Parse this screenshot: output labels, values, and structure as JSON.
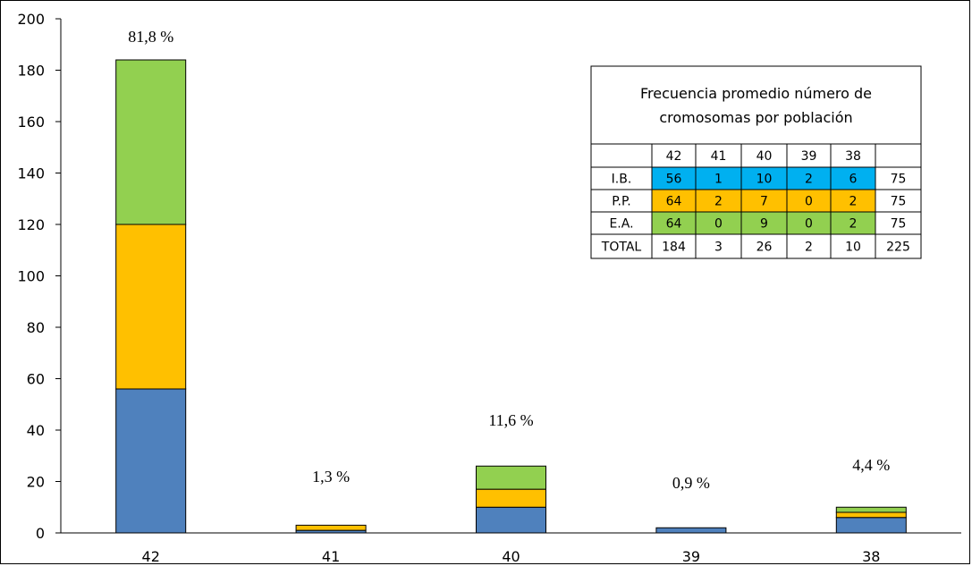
{
  "chart_data": {
    "type": "bar",
    "stacked": true,
    "categories": [
      "42",
      "41",
      "40",
      "39",
      "38"
    ],
    "series": [
      {
        "name": "I.B.",
        "color": "#4f81bd",
        "values": [
          56,
          1,
          10,
          2,
          6
        ]
      },
      {
        "name": "P.P.",
        "color": "#ffc000",
        "values": [
          64,
          2,
          7,
          0,
          2
        ]
      },
      {
        "name": "E.A.",
        "color": "#92d050",
        "values": [
          64,
          0,
          9,
          0,
          2
        ]
      }
    ],
    "ylim": [
      0,
      200
    ],
    "yticks": [
      "0",
      "20",
      "40",
      "60",
      "80",
      "100",
      "120",
      "140",
      "160",
      "180",
      "200"
    ],
    "grid": false,
    "title": "",
    "xlabel": "",
    "ylabel": "",
    "percent_labels": [
      "81,8 %",
      "1,3 %",
      "11,6 %",
      "0,9 %",
      "4,4 %"
    ]
  },
  "table": {
    "title_line1": "Frecuencia promedio número de",
    "title_line2": "cromosomas por población",
    "header": [
      "",
      "42",
      "41",
      "40",
      "39",
      "38",
      ""
    ],
    "rows": [
      {
        "label": "I.B.",
        "values": [
          "56",
          "1",
          "10",
          "2",
          "6"
        ],
        "total": "75",
        "color": "#00b0f0"
      },
      {
        "label": "P.P.",
        "values": [
          "64",
          "2",
          "7",
          "0",
          "2"
        ],
        "total": "75",
        "color": "#ffc000"
      },
      {
        "label": "E.A.",
        "values": [
          "64",
          "0",
          "9",
          "0",
          "2"
        ],
        "total": "75",
        "color": "#92d050"
      },
      {
        "label": "TOTAL",
        "values": [
          "184",
          "3",
          "26",
          "2",
          "10"
        ],
        "total": "225",
        "color": "#ffffff"
      }
    ]
  }
}
